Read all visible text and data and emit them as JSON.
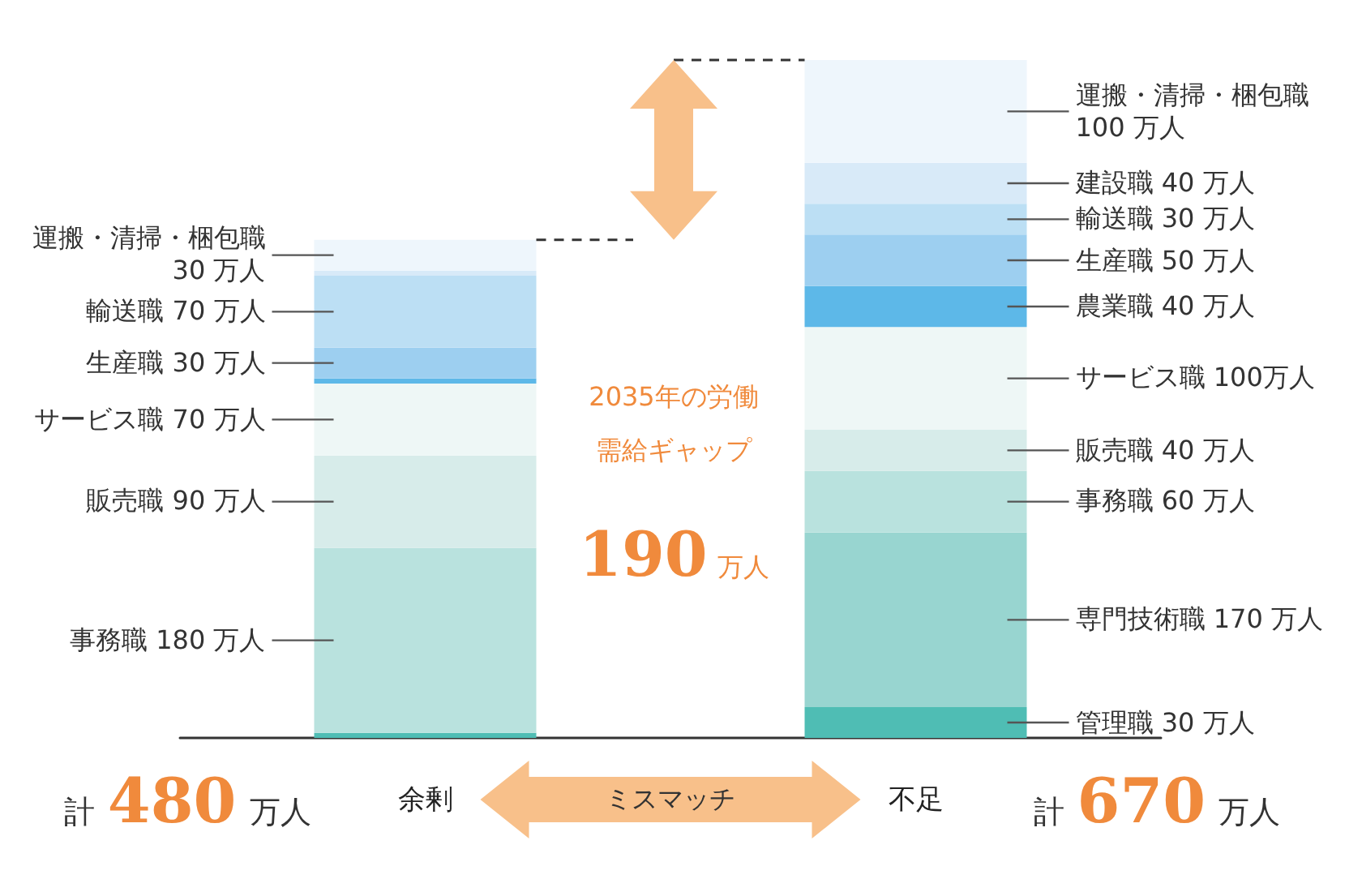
{
  "chart_data": {
    "type": "bar",
    "stacked": true,
    "tick_labels": "x",
    "categories": [
      "余剰",
      "不足"
    ],
    "series": [
      {
        "name": "管理職",
        "color": "#4fbdb4",
        "values": [
          5,
          30
        ],
        "value_labels": [
          null,
          "30 万人"
        ]
      },
      {
        "name": "専門技術職",
        "color": "#98d5d0",
        "values": [
          null,
          170
        ],
        "value_labels": [
          null,
          "170 万人"
        ]
      },
      {
        "name": "事務職",
        "color": "#b9e2de",
        "values": [
          180,
          60
        ],
        "value_labels": [
          "180 万人",
          "60 万人"
        ]
      },
      {
        "name": "販売職",
        "color": "#d7ecea",
        "values": [
          90,
          40
        ],
        "value_labels": [
          "90 万人",
          "40 万人"
        ]
      },
      {
        "name": "サービス職",
        "color": "#eef7f6",
        "values": [
          70,
          100
        ],
        "value_labels": [
          "70 万人",
          "100万人"
        ]
      },
      {
        "name": "農業職",
        "color": "#5db8e8",
        "values": [
          5,
          40
        ],
        "value_labels": [
          null,
          "40 万人"
        ]
      },
      {
        "name": "生産職",
        "color": "#9dcff0",
        "values": [
          30,
          50
        ],
        "value_labels": [
          "30 万人",
          "50 万人"
        ]
      },
      {
        "name": "輸送職",
        "color": "#bcdff4",
        "values": [
          70,
          30
        ],
        "value_labels": [
          "70 万人",
          "30 万人"
        ]
      },
      {
        "name": "建設職",
        "color": "#d8eaf8",
        "values": [
          5,
          40
        ],
        "value_labels": [
          null,
          "40 万人"
        ]
      },
      {
        "name": "運搬・清掃・梱包職",
        "color": "#eef6fc",
        "values": [
          30,
          100
        ],
        "value_labels": [
          "30 万人",
          "100 万人"
        ]
      }
    ],
    "totals": [
      "計480万人",
      "計670万人"
    ],
    "annotations": [
      "2035年の労働需給ギャップ",
      "190万人",
      "ミスマッチ"
    ]
  }
}
